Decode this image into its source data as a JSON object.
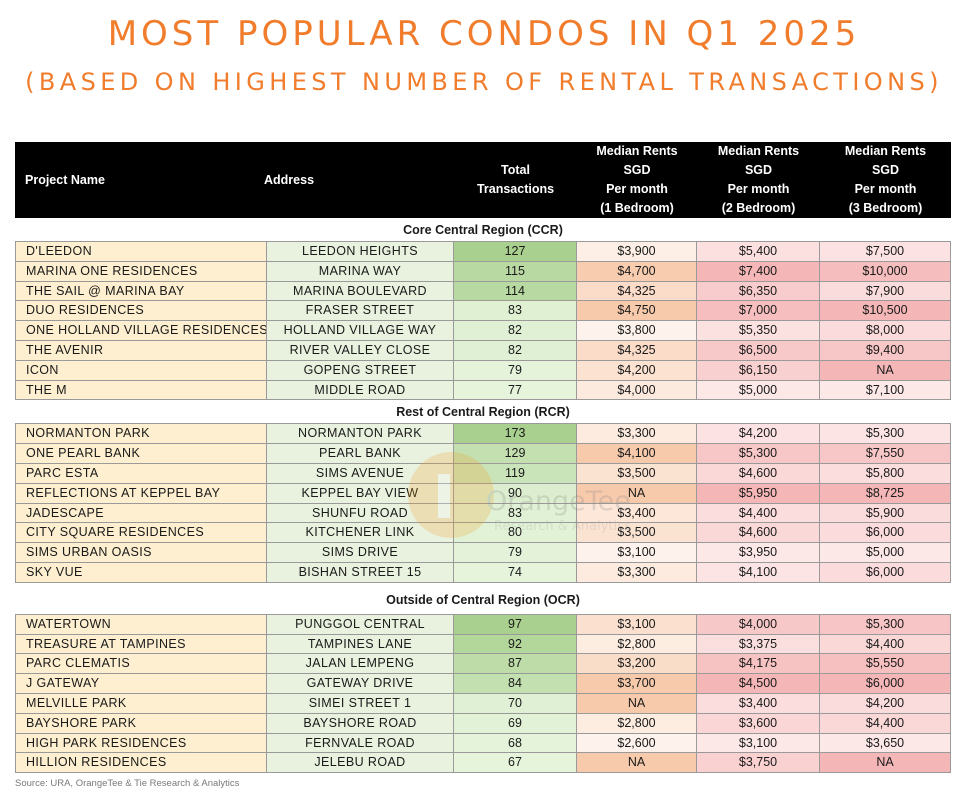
{
  "title": "MOST POPULAR CONDOS IN Q1 2025",
  "subtitle": "(BASED ON HIGHEST NUMBER OF RENTAL TRANSACTIONS)",
  "headers": {
    "project": "Project Name",
    "address": "Address",
    "total": [
      "Total",
      "Transactions"
    ],
    "br1": [
      "Median Rents",
      "SGD",
      "Per month",
      "(1 Bedroom)"
    ],
    "br2": [
      "Median Rents",
      "SGD",
      "Per month",
      "(2 Bedroom)"
    ],
    "br3": [
      "Median Rents",
      "SGD",
      "Per month",
      "(3 Bedroom)"
    ]
  },
  "sections": [
    {
      "name": "Core Central Region (CCR)",
      "rows": [
        [
          "D'LEEDON",
          "LEEDON HEIGHTS",
          "127",
          "$3,900",
          "$5,400",
          "$7,500"
        ],
        [
          "MARINA ONE RESIDENCES",
          "MARINA WAY",
          "115",
          "$4,700",
          "$7,400",
          "$10,000"
        ],
        [
          "THE SAIL @ MARINA BAY",
          "MARINA BOULEVARD",
          "114",
          "$4,325",
          "$6,350",
          "$7,900"
        ],
        [
          "DUO RESIDENCES",
          "FRASER STREET",
          "83",
          "$4,750",
          "$7,000",
          "$10,500"
        ],
        [
          "ONE HOLLAND VILLAGE RESIDENCES",
          "HOLLAND VILLAGE WAY",
          "82",
          "$3,800",
          "$5,350",
          "$8,000"
        ],
        [
          "THE AVENIR",
          "RIVER VALLEY CLOSE",
          "82",
          "$4,325",
          "$6,500",
          "$9,400"
        ],
        [
          "ICON",
          "GOPENG STREET",
          "79",
          "$4,200",
          "$6,150",
          "NA"
        ],
        [
          "THE M",
          "MIDDLE ROAD",
          "77",
          "$4,000",
          "$5,000",
          "$7,100"
        ]
      ]
    },
    {
      "name": "Rest of Central Region (RCR)",
      "rows": [
        [
          "NORMANTON PARK",
          "NORMANTON PARK",
          "173",
          "$3,300",
          "$4,200",
          "$5,300"
        ],
        [
          "ONE PEARL BANK",
          "PEARL BANK",
          "129",
          "$4,100",
          "$5,300",
          "$7,550"
        ],
        [
          "PARC ESTA",
          "SIMS AVENUE",
          "119",
          "$3,500",
          "$4,600",
          "$5,800"
        ],
        [
          "REFLECTIONS AT KEPPEL BAY",
          "KEPPEL BAY VIEW",
          "90",
          "NA",
          "$5,950",
          "$8,725"
        ],
        [
          "JADESCAPE",
          "SHUNFU ROAD",
          "83",
          "$3,400",
          "$4,400",
          "$5,900"
        ],
        [
          "CITY SQUARE RESIDENCES",
          "KITCHENER LINK",
          "80",
          "$3,500",
          "$4,600",
          "$6,000"
        ],
        [
          "SIMS URBAN OASIS",
          "SIMS DRIVE",
          "79",
          "$3,100",
          "$3,950",
          "$5,000"
        ],
        [
          "SKY VUE",
          "BISHAN STREET 15",
          "74",
          "$3,300",
          "$4,100",
          "$6,000"
        ]
      ]
    },
    {
      "name": "Outside of Central Region (OCR)",
      "rows": [
        [
          "WATERTOWN",
          "PUNGGOL CENTRAL",
          "97",
          "$3,100",
          "$4,000",
          "$5,300"
        ],
        [
          "TREASURE AT TAMPINES",
          "TAMPINES LANE",
          "92",
          "$2,800",
          "$3,375",
          "$4,400"
        ],
        [
          "PARC CLEMATIS",
          "JALAN LEMPENG",
          "87",
          "$3,200",
          "$4,175",
          "$5,550"
        ],
        [
          "J GATEWAY",
          "GATEWAY DRIVE",
          "84",
          "$3,700",
          "$4,500",
          "$6,000"
        ],
        [
          "MELVILLE PARK",
          "SIMEI STREET 1",
          "70",
          "NA",
          "$3,400",
          "$4,200"
        ],
        [
          "BAYSHORE PARK",
          "BAYSHORE ROAD",
          "69",
          "$2,800",
          "$3,600",
          "$4,400"
        ],
        [
          "HIGH PARK RESIDENCES",
          "FERNVALE ROAD",
          "68",
          "$2,600",
          "$3,100",
          "$3,650"
        ],
        [
          "HILLION RESIDENCES",
          "JELEBU ROAD",
          "67",
          "NA",
          "$3,750",
          "NA"
        ]
      ]
    }
  ],
  "watermark": {
    "brand": "OrangeTee",
    "tagline": "Research & Analytics"
  },
  "source": "Source: URA, OrangeTee & Tie Research & Analytics",
  "colors": {
    "title": "#f07c2c",
    "header_bg": "#000000",
    "project_bg": "#fdefcf",
    "address_bg": "#e9f2df",
    "transactions_scale": [
      "#e6f4dc",
      "#a9d08e"
    ],
    "br1_scale": [
      "#fef3ec",
      "#f7caac"
    ],
    "br2_scale": [
      "#fde8e8",
      "#f4b6b6"
    ],
    "br3_scale": [
      "#fde8e8",
      "#f4b6b6"
    ]
  }
}
